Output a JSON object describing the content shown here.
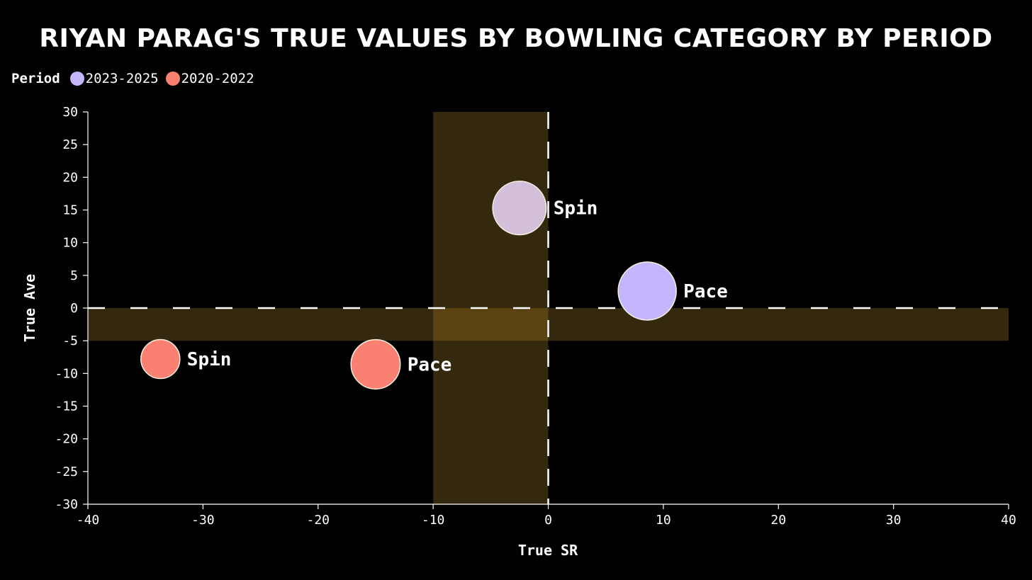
{
  "chart_data": {
    "type": "scatter",
    "title": "Riyan Parag's True Values by Bowling Category by Period",
    "xlabel": "True SR",
    "ylabel": "True Ave",
    "xlim": [
      -40,
      40
    ],
    "ylim": [
      -30,
      30
    ],
    "xticks": [
      -40,
      -30,
      -20,
      -10,
      0,
      10,
      20,
      30,
      40
    ],
    "yticks": [
      30,
      25,
      20,
      15,
      10,
      5,
      0,
      -5,
      -10,
      -15,
      -20,
      -25,
      -30
    ],
    "legend": {
      "title": "Period",
      "placement": "top-left",
      "entries": [
        {
          "label": "2023-2025",
          "color": "#c4b5fd"
        },
        {
          "label": "2020-2022",
          "color": "#fa8072"
        }
      ]
    },
    "highlight_bands": [
      {
        "axis": "x",
        "from": -10,
        "to": 0,
        "color": "#3a2c0f"
      },
      {
        "axis": "y",
        "from": -5,
        "to": 0,
        "color": "#3a2c0f"
      }
    ],
    "reference_lines": [
      {
        "axis": "x",
        "value": 0
      },
      {
        "axis": "y",
        "value": 0
      }
    ],
    "series": [
      {
        "name": "2023-2025",
        "color": "#c4b5fd",
        "points": [
          {
            "label": "Spin",
            "x": -2.5,
            "y": 15.3,
            "size": 0.85,
            "fill": "#d3bfd9"
          },
          {
            "label": "Pace",
            "x": 8.6,
            "y": 2.6,
            "size": 1.0,
            "fill": "#c4b5fd"
          }
        ]
      },
      {
        "name": "2020-2022",
        "color": "#fa8072",
        "points": [
          {
            "label": "Spin",
            "x": -33.7,
            "y": -7.8,
            "size": 0.45,
            "fill": "#fa8072"
          },
          {
            "label": "Pace",
            "x": -15.0,
            "y": -8.6,
            "size": 0.72,
            "fill": "#fa8072"
          }
        ]
      }
    ]
  }
}
